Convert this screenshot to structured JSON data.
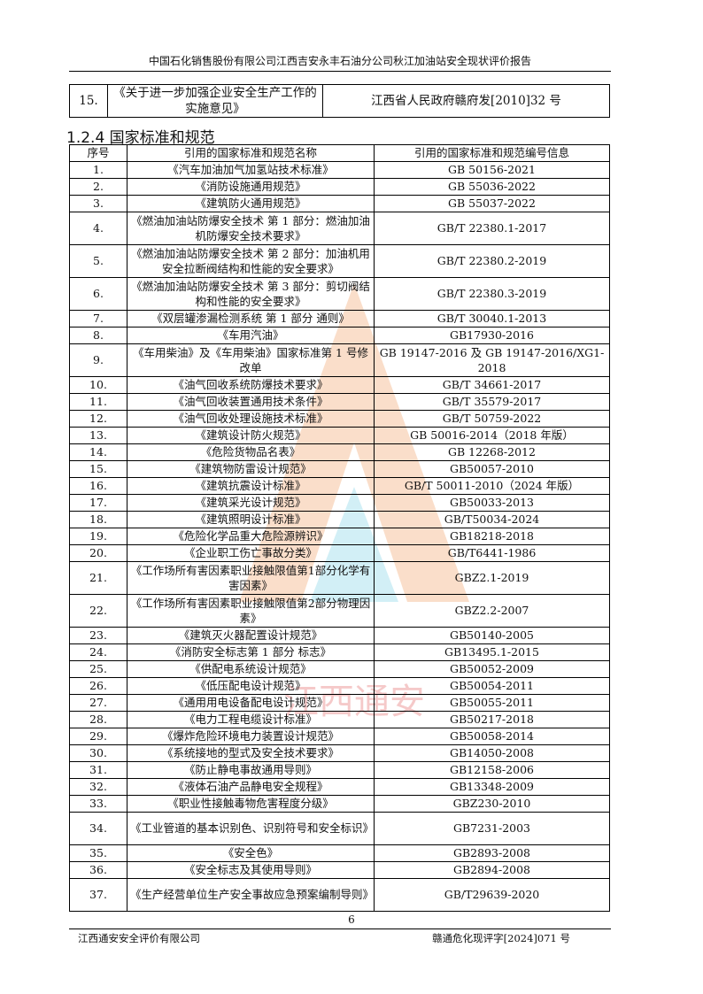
{
  "header": {
    "title": "中国石化销售股份有限公司江西吉安永丰石油分公司秋江加油站安全现状评价报告"
  },
  "top_table": {
    "rows": [
      {
        "no": "15.",
        "name": "《关于进一步加强企业安全生产工作的实施意见》",
        "code": "江西省人民政府赣府发[2010]32 号"
      }
    ]
  },
  "section": {
    "heading": "1.2.4 国家标准和规范"
  },
  "table": {
    "columns": [
      "序号",
      "引用的国家标准和规范名称",
      "引用的国家标准和规范编号信息"
    ],
    "rows": [
      {
        "no": "1.",
        "name": "《汽车加油加气加氢站技术标准》",
        "code": "GB 50156-2021"
      },
      {
        "no": "2.",
        "name": "《消防设施通用规范》",
        "code": "GB 55036-2022"
      },
      {
        "no": "3.",
        "name": "《建筑防火通用规范》",
        "code": "GB 55037-2022"
      },
      {
        "no": "4.",
        "name": "《燃油加油站防爆安全技术 第 1 部分：燃油加油机防爆安全技术要求》",
        "code": "GB/T 22380.1-2017"
      },
      {
        "no": "5.",
        "name": "《燃油加油站防爆安全技术 第 2 部分：加油机用安全拉断阀结构和性能的安全要求》",
        "code": "GB/T 22380.2-2019"
      },
      {
        "no": "6.",
        "name": "《燃油加油站防爆安全技术 第 3 部分：剪切阀结构和性能的安全要求》",
        "code": "GB/T 22380.3-2019"
      },
      {
        "no": "7.",
        "name": "《双层罐渗漏检测系统 第 1 部分 通则》",
        "code": "GB/T 30040.1-2013"
      },
      {
        "no": "8.",
        "name": "《车用汽油》",
        "code": "GB17930-2016"
      },
      {
        "no": "9.",
        "name": "《车用柴油》及《车用柴油》国家标准第 1 号修改单",
        "code": "GB 19147-2016 及 GB 19147-2016/XG1-2018"
      },
      {
        "no": "10.",
        "name": "《油气回收系统防爆技术要求》",
        "code": "GB/T 34661-2017"
      },
      {
        "no": "11.",
        "name": "《油气回收装置通用技术条件》",
        "code": "GB/T 35579-2017"
      },
      {
        "no": "12.",
        "name": "《油气回收处理设施技术标准》",
        "code": "GB/T 50759-2022"
      },
      {
        "no": "13.",
        "name": "《建筑设计防火规范》",
        "code": "GB 50016-2014（2018 年版）"
      },
      {
        "no": "14.",
        "name": "《危险货物品名表》",
        "code": "GB 12268-2012"
      },
      {
        "no": "15.",
        "name": "《建筑物防雷设计规范》",
        "code": "GB50057-2010"
      },
      {
        "no": "16.",
        "name": "《建筑抗震设计标准》",
        "code": "GB/T 50011-2010（2024 年版）"
      },
      {
        "no": "17.",
        "name": "《建筑采光设计规范》",
        "code": "GB50033-2013"
      },
      {
        "no": "18.",
        "name": "《建筑照明设计标准》",
        "code": "GB/T50034-2024"
      },
      {
        "no": "19.",
        "name": "《危险化学品重大危险源辨识》",
        "code": "GB18218-2018"
      },
      {
        "no": "20.",
        "name": "《企业职工伤亡事故分类》",
        "code": "GB/T6441-1986"
      },
      {
        "no": "21.",
        "name": "《工作场所有害因素职业接触限值第1部分化学有害因素》",
        "code": "GBZ2.1-2019"
      },
      {
        "no": "22.",
        "name": "《工作场所有害因素职业接触限值第2部分物理因素》",
        "code": "GBZ2.2-2007"
      },
      {
        "no": "23.",
        "name": "《建筑灭火器配置设计规范》",
        "code": "GB50140-2005"
      },
      {
        "no": "24.",
        "name": "《消防安全标志第 1 部分 标志》",
        "code": "GB13495.1-2015"
      },
      {
        "no": "25.",
        "name": "《供配电系统设计规范》",
        "code": "GB50052-2009"
      },
      {
        "no": "26.",
        "name": "《低压配电设计规范》",
        "code": "GB50054-2011"
      },
      {
        "no": "27.",
        "name": "《通用用电设备配电设计规范》",
        "code": "GB50055-2011"
      },
      {
        "no": "28.",
        "name": "《电力工程电缆设计标准》",
        "code": "GB50217-2018"
      },
      {
        "no": "29.",
        "name": "《爆炸危险环境电力装置设计规范》",
        "code": "GB50058-2014"
      },
      {
        "no": "30.",
        "name": "《系统接地的型式及安全技术要求》",
        "code": "GB14050-2008"
      },
      {
        "no": "31.",
        "name": "《防止静电事故通用导则》",
        "code": "GB12158-2006"
      },
      {
        "no": "32.",
        "name": "《液体石油产品静电安全规程》",
        "code": "GB13348-2009"
      },
      {
        "no": "33.",
        "name": "《职业性接触毒物危害程度分级》",
        "code": "GBZ230-2010"
      },
      {
        "no": "34.",
        "name": "《工业管道的基本识别色、识别符号和安全标识》",
        "code": "GB7231-2003"
      },
      {
        "no": "35.",
        "name": "《安全色》",
        "code": "GB2893-2008"
      },
      {
        "no": "36.",
        "name": "《安全标志及其使用导则》",
        "code": "GB2894-2008"
      },
      {
        "no": "37.",
        "name": "《生产经营单位生产安全事故应急预案编制导则》",
        "code": "GB/T29639-2020"
      }
    ]
  },
  "footer": {
    "page": "6",
    "company": "江西通安安全评价有限公司",
    "doc_no": "赣通危化现评字[2024]071 号"
  },
  "watermark": {
    "text": "江西通安",
    "color": "#f2a36b"
  }
}
